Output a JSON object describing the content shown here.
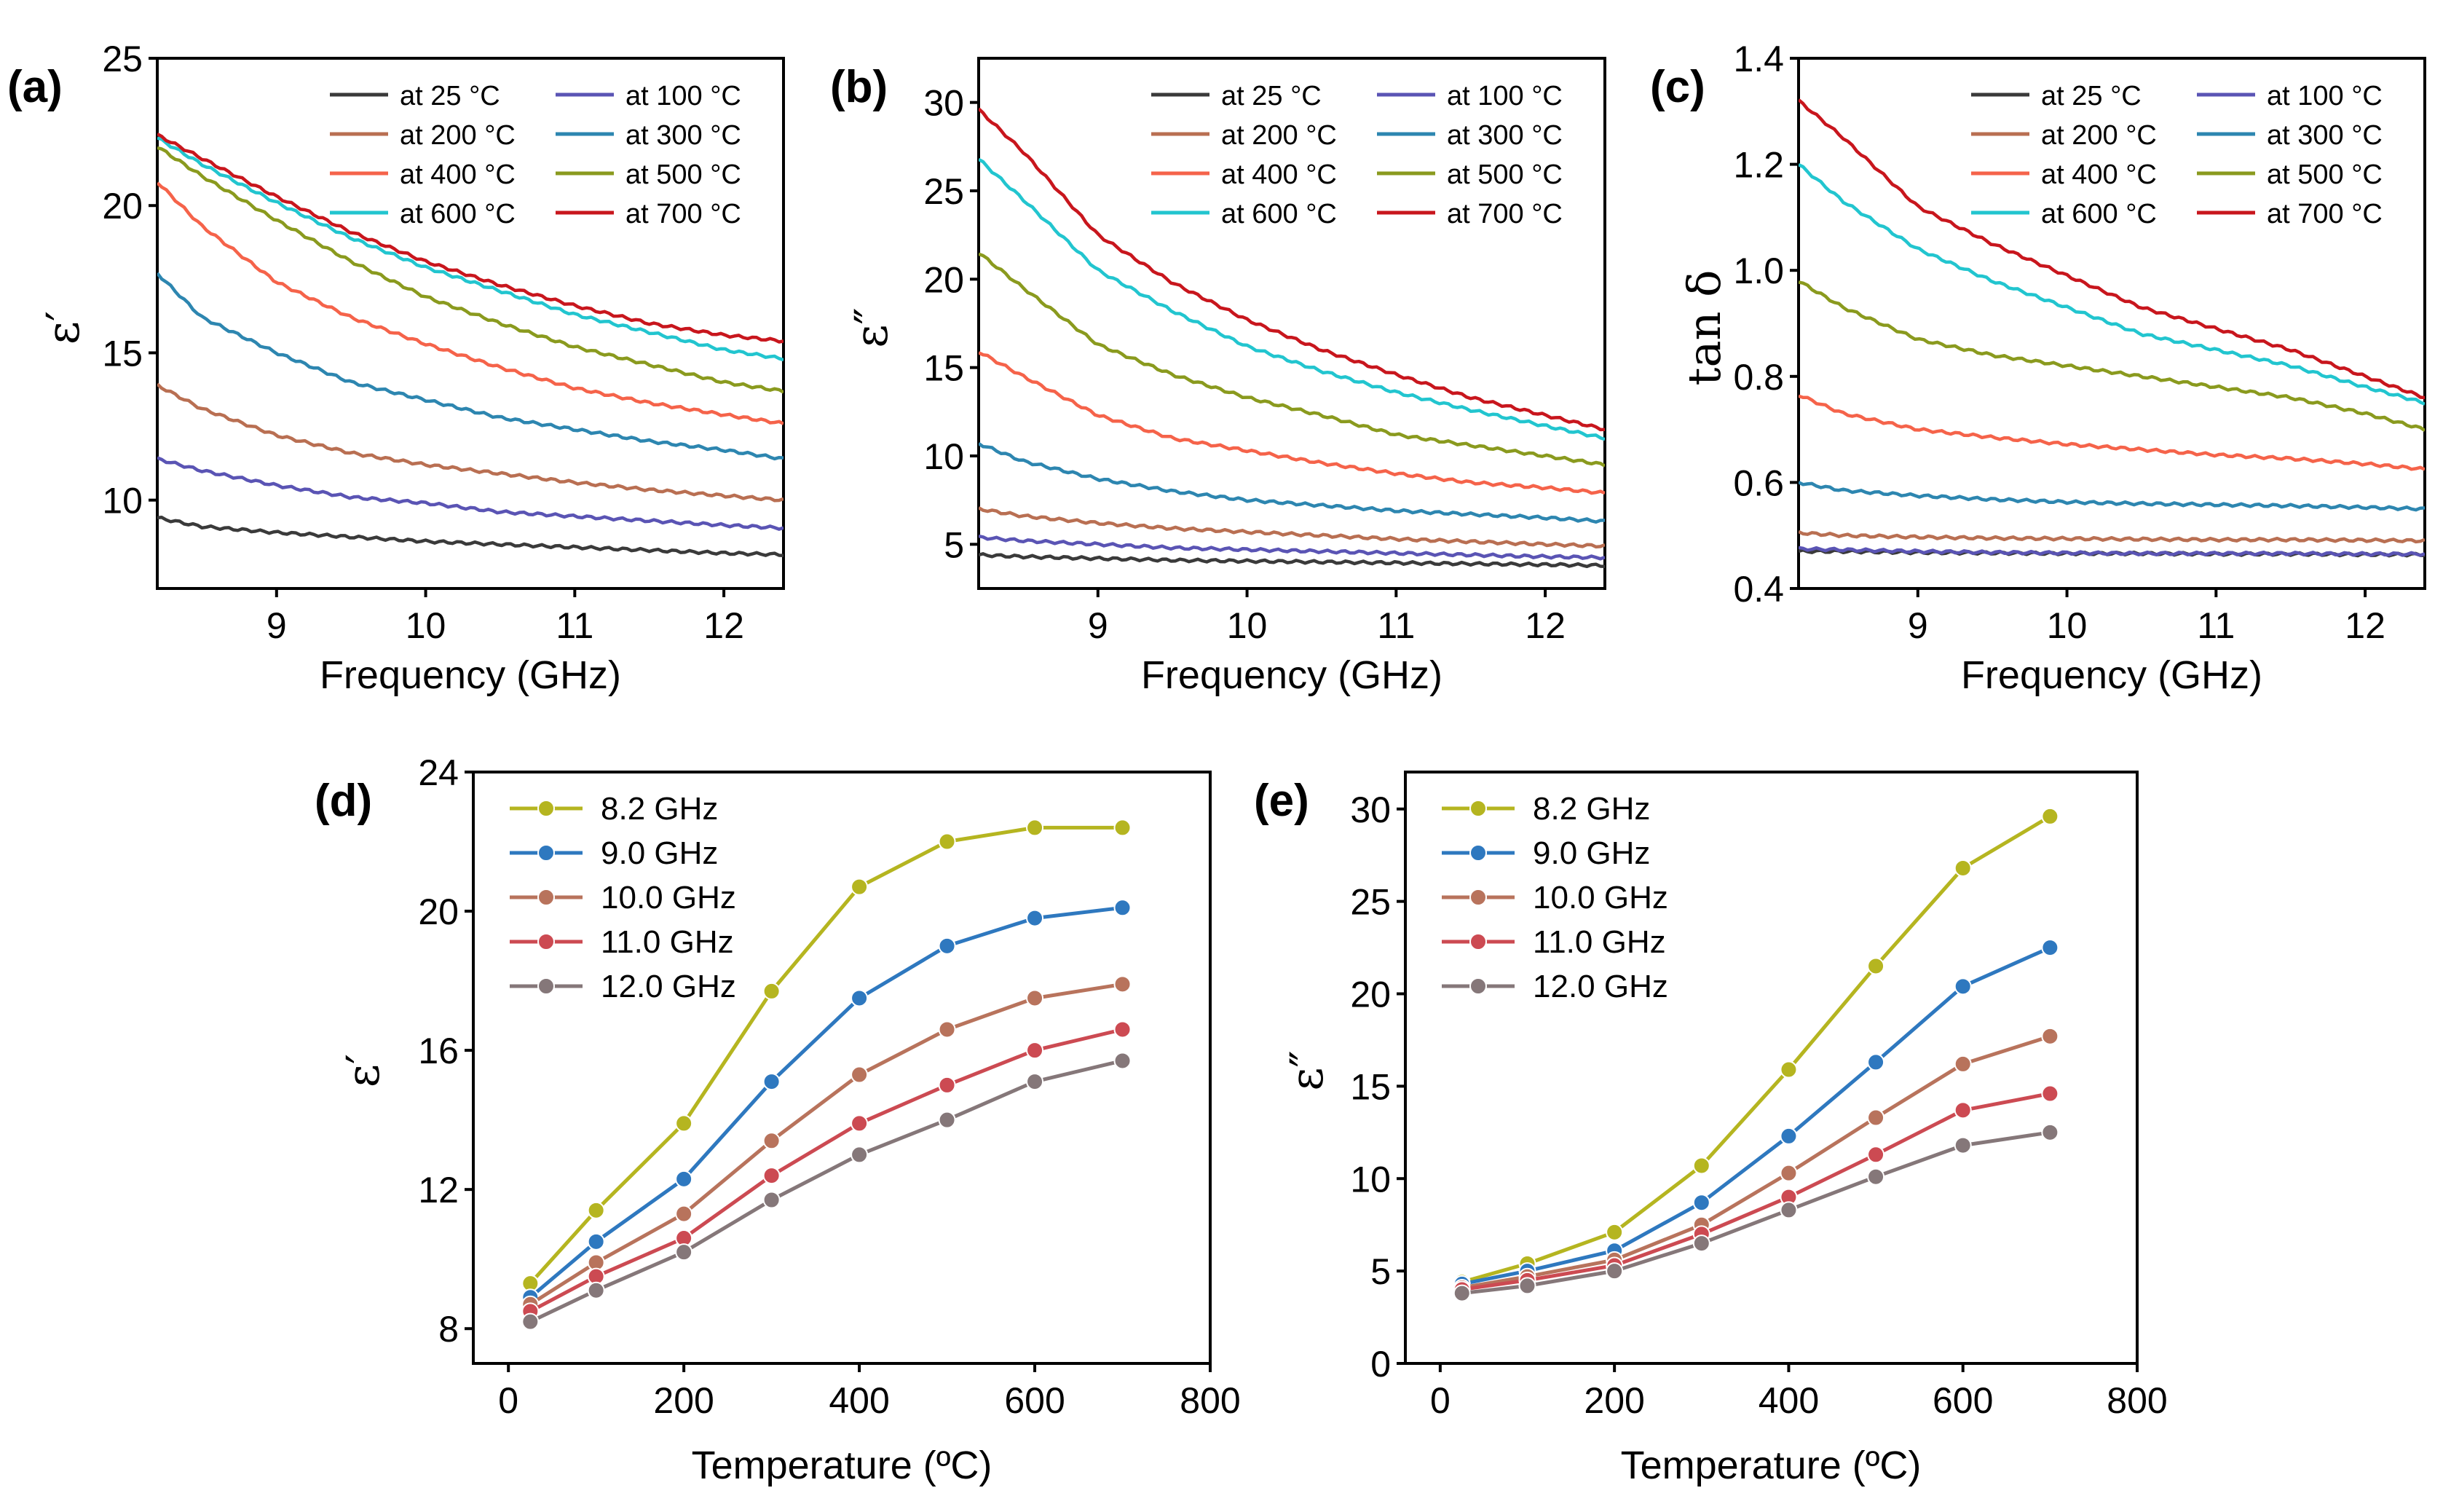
{
  "chart_data": [
    {
      "panel": "(a)",
      "type": "line",
      "xlabel": "Frequency (GHz)",
      "ylabel": "ε′",
      "xlim": [
        8.2,
        12.4
      ],
      "ylim": [
        7,
        25
      ],
      "xticks": [
        9,
        10,
        11,
        12
      ],
      "yticks": [
        10,
        15,
        20,
        25
      ],
      "legend": "top-right",
      "x": [
        8.2,
        8.5,
        9.0,
        9.5,
        10.0,
        10.5,
        11.0,
        11.5,
        12.0,
        12.4
      ],
      "series": [
        {
          "name": "at 25 °C",
          "color": "#3a3a3a",
          "values": [
            9.4,
            9.1,
            8.9,
            8.75,
            8.6,
            8.5,
            8.4,
            8.3,
            8.2,
            8.15
          ]
        },
        {
          "name": "at 100 °C",
          "color": "#5a54b4",
          "values": [
            11.4,
            11.0,
            10.5,
            10.1,
            9.9,
            9.6,
            9.45,
            9.3,
            9.15,
            9.05
          ]
        },
        {
          "name": "at 200 °C",
          "color": "#b96f52",
          "values": [
            13.9,
            13.1,
            12.2,
            11.6,
            11.2,
            10.9,
            10.6,
            10.35,
            10.15,
            10.0
          ]
        },
        {
          "name": "at 300 °C",
          "color": "#2d86b0",
          "values": [
            17.7,
            16.2,
            15.0,
            14.0,
            13.4,
            12.8,
            12.4,
            12.0,
            11.7,
            11.4
          ]
        },
        {
          "name": "at 400 °C",
          "color": "#f5634a",
          "values": [
            20.8,
            19.3,
            17.4,
            16.2,
            15.3,
            14.5,
            13.8,
            13.3,
            12.9,
            12.6
          ]
        },
        {
          "name": "at 500 °C",
          "color": "#8a9a1e",
          "values": [
            22.0,
            21.0,
            19.5,
            18.1,
            16.9,
            16.0,
            15.2,
            14.6,
            14.0,
            13.7
          ]
        },
        {
          "name": "at 600 °C",
          "color": "#22c5cf",
          "values": [
            22.3,
            21.4,
            20.1,
            18.9,
            17.9,
            17.1,
            16.3,
            15.7,
            15.1,
            14.8
          ]
        },
        {
          "name": "at 700 °C",
          "color": "#c8161d",
          "values": [
            22.4,
            21.6,
            20.3,
            19.1,
            18.1,
            17.3,
            16.6,
            16.0,
            15.6,
            15.4
          ]
        }
      ]
    },
    {
      "panel": "(b)",
      "type": "line",
      "xlabel": "Frequency (GHz)",
      "ylabel": "ε″",
      "xlim": [
        8.2,
        12.4
      ],
      "ylim": [
        2.5,
        32.5
      ],
      "xticks": [
        9,
        10,
        11,
        12
      ],
      "yticks": [
        5,
        10,
        15,
        20,
        25,
        30
      ],
      "legend": "top-right",
      "x": [
        8.2,
        8.5,
        9.0,
        9.5,
        10.0,
        10.5,
        11.0,
        11.5,
        12.0,
        12.4
      ],
      "series": [
        {
          "name": "at 25 °C",
          "color": "#3a3a3a",
          "values": [
            4.4,
            4.3,
            4.2,
            4.1,
            4.05,
            4.0,
            3.95,
            3.9,
            3.85,
            3.8
          ]
        },
        {
          "name": "at 100 °C",
          "color": "#5a54b4",
          "values": [
            5.4,
            5.2,
            5.0,
            4.8,
            4.7,
            4.6,
            4.5,
            4.4,
            4.3,
            4.25
          ]
        },
        {
          "name": "at 200 °C",
          "color": "#b96f52",
          "values": [
            7.0,
            6.6,
            6.2,
            5.9,
            5.7,
            5.5,
            5.3,
            5.15,
            5.0,
            4.9
          ]
        },
        {
          "name": "at 300 °C",
          "color": "#2d86b0",
          "values": [
            10.7,
            9.7,
            8.7,
            8.0,
            7.5,
            7.2,
            6.9,
            6.7,
            6.5,
            6.3
          ]
        },
        {
          "name": "at 400 °C",
          "color": "#f5634a",
          "values": [
            15.9,
            14.5,
            12.3,
            11.0,
            10.3,
            9.6,
            9.0,
            8.5,
            8.2,
            7.9
          ]
        },
        {
          "name": "at 500 °C",
          "color": "#8a9a1e",
          "values": [
            21.5,
            19.5,
            16.3,
            14.6,
            13.3,
            12.3,
            11.2,
            10.6,
            10.0,
            9.5
          ]
        },
        {
          "name": "at 600 °C",
          "color": "#22c5cf",
          "values": [
            26.8,
            24.5,
            20.5,
            18.2,
            16.2,
            14.8,
            13.6,
            12.6,
            11.7,
            11.0
          ]
        },
        {
          "name": "at 700 °C",
          "color": "#c8161d",
          "values": [
            29.6,
            27.2,
            22.5,
            19.8,
            17.7,
            16.0,
            14.6,
            13.3,
            12.3,
            11.5
          ]
        }
      ]
    },
    {
      "panel": "(c)",
      "type": "line",
      "xlabel": "Frequency (GHz)",
      "ylabel": "tan δ",
      "xlim": [
        8.2,
        12.4
      ],
      "ylim": [
        0.4,
        1.4
      ],
      "xticks": [
        9,
        10,
        11,
        12
      ],
      "yticks": [
        "0.4",
        "0.6",
        "0.8",
        "1.0",
        "1.2",
        "1.4"
      ],
      "legend": "top-right",
      "x": [
        8.2,
        8.5,
        9.0,
        9.5,
        10.0,
        10.5,
        11.0,
        11.5,
        12.0,
        12.4
      ],
      "series": [
        {
          "name": "at 25 °C",
          "color": "#3a3a3a",
          "values": [
            0.47,
            0.47,
            0.468,
            0.467,
            0.466,
            0.466,
            0.465,
            0.465,
            0.464,
            0.464
          ]
        },
        {
          "name": "at 100 °C",
          "color": "#5a54b4",
          "values": [
            0.475,
            0.473,
            0.47,
            0.468,
            0.467,
            0.466,
            0.466,
            0.466,
            0.465,
            0.465
          ]
        },
        {
          "name": "at 200 °C",
          "color": "#b96f52",
          "values": [
            0.505,
            0.5,
            0.497,
            0.495,
            0.494,
            0.493,
            0.492,
            0.492,
            0.491,
            0.49
          ]
        },
        {
          "name": "at 300 °C",
          "color": "#2d86b0",
          "values": [
            0.6,
            0.585,
            0.575,
            0.568,
            0.563,
            0.56,
            0.558,
            0.556,
            0.553,
            0.55
          ]
        },
        {
          "name": "at 400 °C",
          "color": "#f5634a",
          "values": [
            0.765,
            0.73,
            0.7,
            0.685,
            0.672,
            0.662,
            0.652,
            0.645,
            0.635,
            0.625
          ]
        },
        {
          "name": "at 500 °C",
          "color": "#8a9a1e",
          "values": [
            0.98,
            0.93,
            0.87,
            0.84,
            0.82,
            0.8,
            0.78,
            0.76,
            0.73,
            0.7
          ]
        },
        {
          "name": "at 600 °C",
          "color": "#22c5cf",
          "values": [
            1.2,
            1.13,
            1.04,
            0.98,
            0.93,
            0.88,
            0.85,
            0.82,
            0.78,
            0.75
          ]
        },
        {
          "name": "at 700 °C",
          "color": "#c8161d",
          "values": [
            1.32,
            1.25,
            1.12,
            1.05,
            0.99,
            0.93,
            0.89,
            0.85,
            0.8,
            0.76
          ]
        }
      ]
    },
    {
      "panel": "(d)",
      "type": "line",
      "xlabel": "Temperature (ºC)",
      "ylabel": "ε′",
      "xlim": [
        -40,
        800
      ],
      "ylim": [
        7,
        24
      ],
      "xticks": [
        0,
        200,
        400,
        600,
        800
      ],
      "yticks": [
        8,
        12,
        16,
        20,
        24
      ],
      "legend": "top-left",
      "markers": true,
      "x": [
        25,
        100,
        200,
        300,
        400,
        500,
        600,
        700
      ],
      "series": [
        {
          "name": "8.2 GHz",
          "color": "#b5b520",
          "values": [
            9.3,
            11.4,
            13.9,
            17.7,
            20.7,
            22.0,
            22.4,
            22.4
          ]
        },
        {
          "name": "9.0 GHz",
          "color": "#2e78bf",
          "values": [
            8.9,
            10.5,
            12.3,
            15.1,
            17.5,
            19.0,
            19.8,
            20.1
          ]
        },
        {
          "name": "10.0 GHz",
          "color": "#b8735c",
          "values": [
            8.7,
            9.9,
            11.3,
            13.4,
            15.3,
            16.6,
            17.5,
            17.9
          ]
        },
        {
          "name": "11.0 GHz",
          "color": "#cc4a52",
          "values": [
            8.5,
            9.5,
            10.6,
            12.4,
            13.9,
            15.0,
            16.0,
            16.6
          ]
        },
        {
          "name": "12.0 GHz",
          "color": "#857779",
          "values": [
            8.2,
            9.1,
            10.2,
            11.7,
            13.0,
            14.0,
            15.1,
            15.7
          ]
        }
      ]
    },
    {
      "panel": "(e)",
      "type": "line",
      "xlabel": "Temperature (ºC)",
      "ylabel": "ε″",
      "xlim": [
        -40,
        800
      ],
      "ylim": [
        0,
        32
      ],
      "xticks": [
        0,
        200,
        400,
        600,
        800
      ],
      "yticks": [
        0,
        5,
        10,
        15,
        20,
        25,
        30
      ],
      "legend": "top-left",
      "markers": true,
      "x": [
        25,
        100,
        200,
        300,
        400,
        500,
        600,
        700
      ],
      "series": [
        {
          "name": "8.2 GHz",
          "color": "#b5b520",
          "values": [
            4.4,
            5.4,
            7.1,
            10.7,
            15.9,
            21.5,
            26.8,
            29.6
          ]
        },
        {
          "name": "9.0 GHz",
          "color": "#2e78bf",
          "values": [
            4.3,
            5.0,
            6.1,
            8.7,
            12.3,
            16.3,
            20.4,
            22.5
          ]
        },
        {
          "name": "10.0 GHz",
          "color": "#b8735c",
          "values": [
            4.1,
            4.7,
            5.6,
            7.5,
            10.3,
            13.3,
            16.2,
            17.7
          ]
        },
        {
          "name": "11.0 GHz",
          "color": "#cc4a52",
          "values": [
            4.0,
            4.5,
            5.3,
            7.0,
            9.0,
            11.3,
            13.7,
            14.6
          ]
        },
        {
          "name": "12.0 GHz",
          "color": "#857779",
          "values": [
            3.8,
            4.2,
            5.0,
            6.5,
            8.3,
            10.1,
            11.8,
            12.5
          ]
        }
      ]
    }
  ]
}
